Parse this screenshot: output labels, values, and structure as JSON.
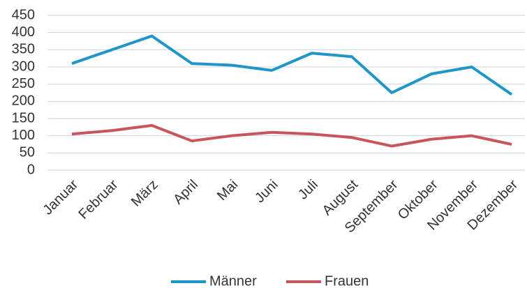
{
  "chart_data": {
    "type": "line",
    "categories": [
      "Januar",
      "Februar",
      "März",
      "April",
      "Mai",
      "Juni",
      "Juli",
      "August",
      "September",
      "Oktober",
      "November",
      "Dezember"
    ],
    "series": [
      {
        "name": "Männer",
        "color": "#1f95c8",
        "values": [
          310,
          350,
          390,
          310,
          305,
          290,
          340,
          330,
          225,
          280,
          300,
          220
        ]
      },
      {
        "name": "Frauen",
        "color": "#c8545c",
        "values": [
          105,
          115,
          130,
          85,
          100,
          110,
          105,
          95,
          70,
          90,
          100,
          75
        ]
      }
    ],
    "ylim": [
      0,
      450
    ],
    "yticks": [
      0,
      50,
      100,
      150,
      200,
      250,
      300,
      350,
      400,
      450
    ],
    "grid": true,
    "legend": "bottom"
  }
}
